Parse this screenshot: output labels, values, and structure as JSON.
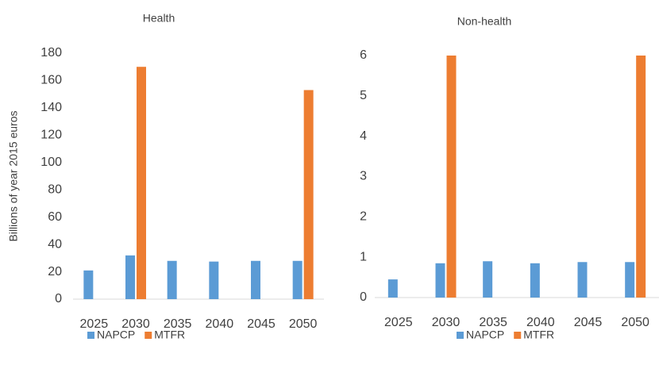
{
  "chart_data": [
    {
      "type": "bar",
      "title": "Health",
      "y_label": "Billions of year 2015 euros",
      "categories": [
        "2025",
        "2030",
        "2035",
        "2040",
        "2045",
        "2050"
      ],
      "series": [
        {
          "name": "NAPCP",
          "color": "#5b9bd5",
          "values": [
            21,
            32,
            28,
            27.5,
            28,
            28
          ]
        },
        {
          "name": "MTFR",
          "color": "#ed7d31",
          "values": [
            null,
            170,
            null,
            null,
            null,
            153
          ]
        }
      ],
      "ylim": [
        0,
        180
      ],
      "yticks": [
        0,
        20,
        40,
        60,
        80,
        100,
        120,
        140,
        160,
        180
      ],
      "grid": false,
      "legend": "bottom"
    },
    {
      "type": "bar",
      "title": "Non-health",
      "categories": [
        "2025",
        "2030",
        "2035",
        "2040",
        "2045",
        "2050"
      ],
      "series": [
        {
          "name": "NAPCP",
          "color": "#5b9bd5",
          "values": [
            0.45,
            0.85,
            0.9,
            0.85,
            0.88,
            0.88
          ]
        },
        {
          "name": "MTFR",
          "color": "#ed7d31",
          "values": [
            null,
            6,
            null,
            null,
            null,
            6
          ]
        }
      ],
      "ylim": [
        0,
        6
      ],
      "yticks": [
        0,
        1,
        2,
        3,
        4,
        5,
        6
      ],
      "grid": false,
      "legend": "bottom"
    }
  ]
}
